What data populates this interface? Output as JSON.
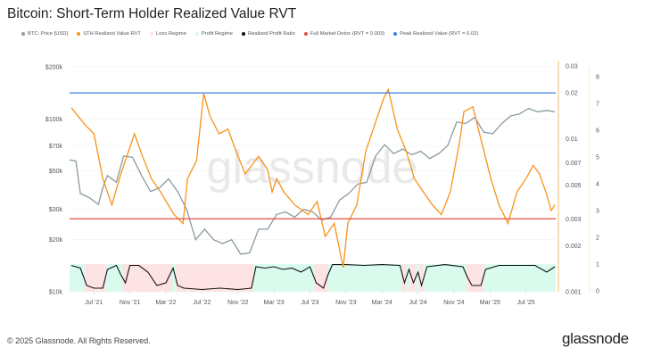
{
  "title": "Bitcoin: Short-Term Holder Realized Value RVT",
  "legend": [
    {
      "label": "BTC: Price [USD]",
      "color": "#8a9aa0"
    },
    {
      "label": "STH Realized Value RVT",
      "color": "#f7931a"
    },
    {
      "label": "Loss Regime",
      "color": "#fde3e3"
    },
    {
      "label": "Profit Regime",
      "color": "#d9fbee"
    },
    {
      "label": "Realized Profit Ratio",
      "color": "#111111"
    },
    {
      "label": "Full Market Detox (RVT = 0.003)",
      "color": "#e74c3c"
    },
    {
      "label": "Peak Realized Value (RVT = 0.02)",
      "color": "#3b7ddd"
    }
  ],
  "footer": {
    "copyright": "© 2025 Glassnode. All Rights Reserved.",
    "logo": "glassnode",
    "watermark": "glassnode"
  },
  "chart_data": {
    "type": "line",
    "x_unit": "months since Jan 2021",
    "xlim": [
      3.3,
      57.3
    ],
    "x_ticks": [
      {
        "m": 6,
        "label": "Jul '21"
      },
      {
        "m": 10,
        "label": "Nov '21"
      },
      {
        "m": 14,
        "label": "Mar '22"
      },
      {
        "m": 18,
        "label": "Jul '22"
      },
      {
        "m": 22,
        "label": "Nov '22"
      },
      {
        "m": 26,
        "label": "Mar '23"
      },
      {
        "m": 30,
        "label": "Jul '23"
      },
      {
        "m": 34,
        "label": "Nov '23"
      },
      {
        "m": 38,
        "label": "Mar '24"
      },
      {
        "m": 42,
        "label": "Jul '24"
      },
      {
        "m": 46,
        "label": "Nov '24"
      },
      {
        "m": 50,
        "label": "Mar '25"
      },
      {
        "m": 54,
        "label": "Jul '25"
      }
    ],
    "price_axis": {
      "scale": "log",
      "range": [
        10000,
        200000
      ],
      "ticks": [
        {
          "v": 200000,
          "label": "$200k"
        },
        {
          "v": 100000,
          "label": "$100k"
        },
        {
          "v": 70000,
          "label": "$70k"
        },
        {
          "v": 50000,
          "label": "$50k"
        },
        {
          "v": 30000,
          "label": "$30k"
        },
        {
          "v": 20000,
          "label": "$20k"
        },
        {
          "v": 10000,
          "label": "$10k"
        }
      ]
    },
    "rvt_axis": {
      "scale": "log",
      "range": [
        0.001,
        0.03
      ],
      "ticks": [
        {
          "v": 0.03,
          "label": "0.03"
        },
        {
          "v": 0.02,
          "label": "0.02"
        },
        {
          "v": 0.01,
          "label": "0.01"
        },
        {
          "v": 0.007,
          "label": "0.007"
        },
        {
          "v": 0.005,
          "label": "0.005"
        },
        {
          "v": 0.003,
          "label": "0.003"
        },
        {
          "v": 0.002,
          "label": "0.002"
        },
        {
          "v": 0.001,
          "label": "0.001"
        }
      ]
    },
    "ratio_axis": {
      "scale": "linear",
      "range": [
        0,
        8
      ],
      "ticks": [
        "0",
        "1",
        "2",
        "3",
        "4",
        "5",
        "6",
        "7",
        "8"
      ]
    },
    "thresholds": {
      "detox": 0.003,
      "peak": 0.02
    },
    "series": [
      {
        "name": "BTC: Price [USD]",
        "points": [
          [
            3.3,
            58000
          ],
          [
            4,
            57000
          ],
          [
            4.5,
            37000
          ],
          [
            5.5,
            35000
          ],
          [
            6.5,
            32000
          ],
          [
            7,
            40000
          ],
          [
            7.5,
            47000
          ],
          [
            8.5,
            43000
          ],
          [
            9.3,
            61000
          ],
          [
            10.3,
            60000
          ],
          [
            11.3,
            47000
          ],
          [
            12.3,
            38000
          ],
          [
            13.3,
            40000
          ],
          [
            14.3,
            45000
          ],
          [
            15.3,
            38000
          ],
          [
            16.3,
            30000
          ],
          [
            17.3,
            20000
          ],
          [
            18.3,
            23000
          ],
          [
            19.3,
            20000
          ],
          [
            20.3,
            19000
          ],
          [
            21.3,
            20000
          ],
          [
            22.3,
            16500
          ],
          [
            23.3,
            16800
          ],
          [
            24.3,
            23000
          ],
          [
            25.3,
            23000
          ],
          [
            26.3,
            28000
          ],
          [
            27.3,
            29000
          ],
          [
            28.3,
            27000
          ],
          [
            29.3,
            30000
          ],
          [
            30.3,
            29000
          ],
          [
            31.3,
            26000
          ],
          [
            32.3,
            27000
          ],
          [
            33.3,
            34000
          ],
          [
            34.3,
            37000
          ],
          [
            35.3,
            42000
          ],
          [
            36.3,
            43000
          ],
          [
            37.3,
            61000
          ],
          [
            38.3,
            71000
          ],
          [
            39.3,
            63000
          ],
          [
            40.3,
            67000
          ],
          [
            41.3,
            62000
          ],
          [
            42.3,
            65000
          ],
          [
            43.3,
            59000
          ],
          [
            44.3,
            63000
          ],
          [
            45.3,
            70000
          ],
          [
            46.3,
            96000
          ],
          [
            47.3,
            94000
          ],
          [
            48.3,
            102000
          ],
          [
            49.3,
            84000
          ],
          [
            50.3,
            82000
          ],
          [
            51.3,
            94000
          ],
          [
            52.3,
            104000
          ],
          [
            53.3,
            107000
          ],
          [
            54.3,
            115000
          ],
          [
            55.3,
            110000
          ],
          [
            56.3,
            112000
          ],
          [
            57.2,
            110000
          ]
        ]
      },
      {
        "name": "STH Realized Value RVT",
        "points": [
          [
            3.5,
            0.016
          ],
          [
            5,
            0.0124
          ],
          [
            6,
            0.0108
          ],
          [
            7,
            0.0055
          ],
          [
            8,
            0.0037
          ],
          [
            9,
            0.0059
          ],
          [
            10.5,
            0.0108
          ],
          [
            11.4,
            0.0077
          ],
          [
            12.4,
            0.0055
          ],
          [
            13.4,
            0.0045
          ],
          [
            14.9,
            0.0032
          ],
          [
            15.9,
            0.0028
          ],
          [
            16.4,
            0.0055
          ],
          [
            17.4,
            0.0072
          ],
          [
            18.2,
            0.0198
          ],
          [
            18.9,
            0.0141
          ],
          [
            19.9,
            0.0108
          ],
          [
            20.9,
            0.0116
          ],
          [
            21.8,
            0.0083
          ],
          [
            22.8,
            0.0059
          ],
          [
            24.3,
            0.0077
          ],
          [
            25.3,
            0.0063
          ],
          [
            25.8,
            0.0045
          ],
          [
            26.3,
            0.0055
          ],
          [
            27.1,
            0.0045
          ],
          [
            28.3,
            0.0037
          ],
          [
            29.8,
            0.0032
          ],
          [
            30.8,
            0.0039
          ],
          [
            31.7,
            0.0023
          ],
          [
            32.7,
            0.0028
          ],
          [
            33.7,
            0.00144
          ],
          [
            34.2,
            0.0028
          ],
          [
            35.2,
            0.0037
          ],
          [
            36.2,
            0.0083
          ],
          [
            37.2,
            0.0124
          ],
          [
            38.2,
            0.0185
          ],
          [
            38.7,
            0.0211
          ],
          [
            39.7,
            0.0116
          ],
          [
            40.7,
            0.0083
          ],
          [
            41.6,
            0.0055
          ],
          [
            42.6,
            0.0045
          ],
          [
            43.6,
            0.0037
          ],
          [
            44.6,
            0.0032
          ],
          [
            45.6,
            0.0045
          ],
          [
            46.6,
            0.0094
          ],
          [
            47.1,
            0.0151
          ],
          [
            48.1,
            0.0162
          ],
          [
            49.1,
            0.0094
          ],
          [
            50.1,
            0.0055
          ],
          [
            51,
            0.0037
          ],
          [
            52,
            0.0028
          ],
          [
            53,
            0.0045
          ],
          [
            54,
            0.0055
          ],
          [
            54.8,
            0.0067
          ],
          [
            55.5,
            0.0059
          ],
          [
            56.2,
            0.0045
          ],
          [
            56.8,
            0.0034
          ],
          [
            57.2,
            0.0037
          ]
        ]
      },
      {
        "name": "Realized Profit Ratio",
        "points": [
          [
            3.5,
            0.95
          ],
          [
            4.5,
            0.85
          ],
          [
            5.2,
            0.2
          ],
          [
            6,
            0.1
          ],
          [
            7,
            0.1
          ],
          [
            7.5,
            0.8
          ],
          [
            8.5,
            0.95
          ],
          [
            9,
            0.6
          ],
          [
            9.5,
            0.3
          ],
          [
            10,
            0.95
          ],
          [
            11,
            0.95
          ],
          [
            12,
            0.7
          ],
          [
            13,
            0.2
          ],
          [
            14,
            0.3
          ],
          [
            14.8,
            0.85
          ],
          [
            15.3,
            0.2
          ],
          [
            16,
            0.1
          ],
          [
            18,
            0.05
          ],
          [
            20,
            0.1
          ],
          [
            22,
            0.05
          ],
          [
            23.5,
            0.1
          ],
          [
            24,
            0.9
          ],
          [
            25,
            0.85
          ],
          [
            26,
            0.9
          ],
          [
            27,
            0.8
          ],
          [
            28,
            0.85
          ],
          [
            29,
            0.7
          ],
          [
            30,
            0.9
          ],
          [
            30.7,
            0.3
          ],
          [
            31.5,
            0.1
          ],
          [
            32,
            0.6
          ],
          [
            32.5,
            0.98
          ],
          [
            34,
            0.98
          ],
          [
            36,
            0.95
          ],
          [
            38,
            0.98
          ],
          [
            40,
            0.95
          ],
          [
            40.5,
            0.3
          ],
          [
            41,
            0.8
          ],
          [
            41.5,
            0.3
          ],
          [
            42,
            0.7
          ],
          [
            42.4,
            0.2
          ],
          [
            43,
            0.9
          ],
          [
            45,
            0.98
          ],
          [
            47,
            0.9
          ],
          [
            47.5,
            0.5
          ],
          [
            48,
            0.2
          ],
          [
            49,
            0.2
          ],
          [
            49.5,
            0.8
          ],
          [
            51,
            0.95
          ],
          [
            53,
            0.95
          ],
          [
            55,
            0.95
          ],
          [
            56.3,
            0.7
          ],
          [
            57.2,
            0.9
          ]
        ]
      }
    ],
    "regimes": [
      [
        "profit",
        3.3,
        5.0
      ],
      [
        "loss",
        5.0,
        7.3
      ],
      [
        "profit",
        7.3,
        9.2
      ],
      [
        "loss",
        9.2,
        14.7
      ],
      [
        "profit",
        14.7,
        15.1
      ],
      [
        "loss",
        15.1,
        23.7
      ],
      [
        "profit",
        23.7,
        30.5
      ],
      [
        "loss",
        30.5,
        32.0
      ],
      [
        "profit",
        32.0,
        40.2
      ],
      [
        "loss",
        40.2,
        40.7
      ],
      [
        "profit",
        40.7,
        41.1
      ],
      [
        "loss",
        41.1,
        41.8
      ],
      [
        "profit",
        41.8,
        42.1
      ],
      [
        "loss",
        42.1,
        42.6
      ],
      [
        "profit",
        42.6,
        47.4
      ],
      [
        "loss",
        47.4,
        49.3
      ],
      [
        "profit",
        49.3,
        57.3
      ]
    ]
  }
}
